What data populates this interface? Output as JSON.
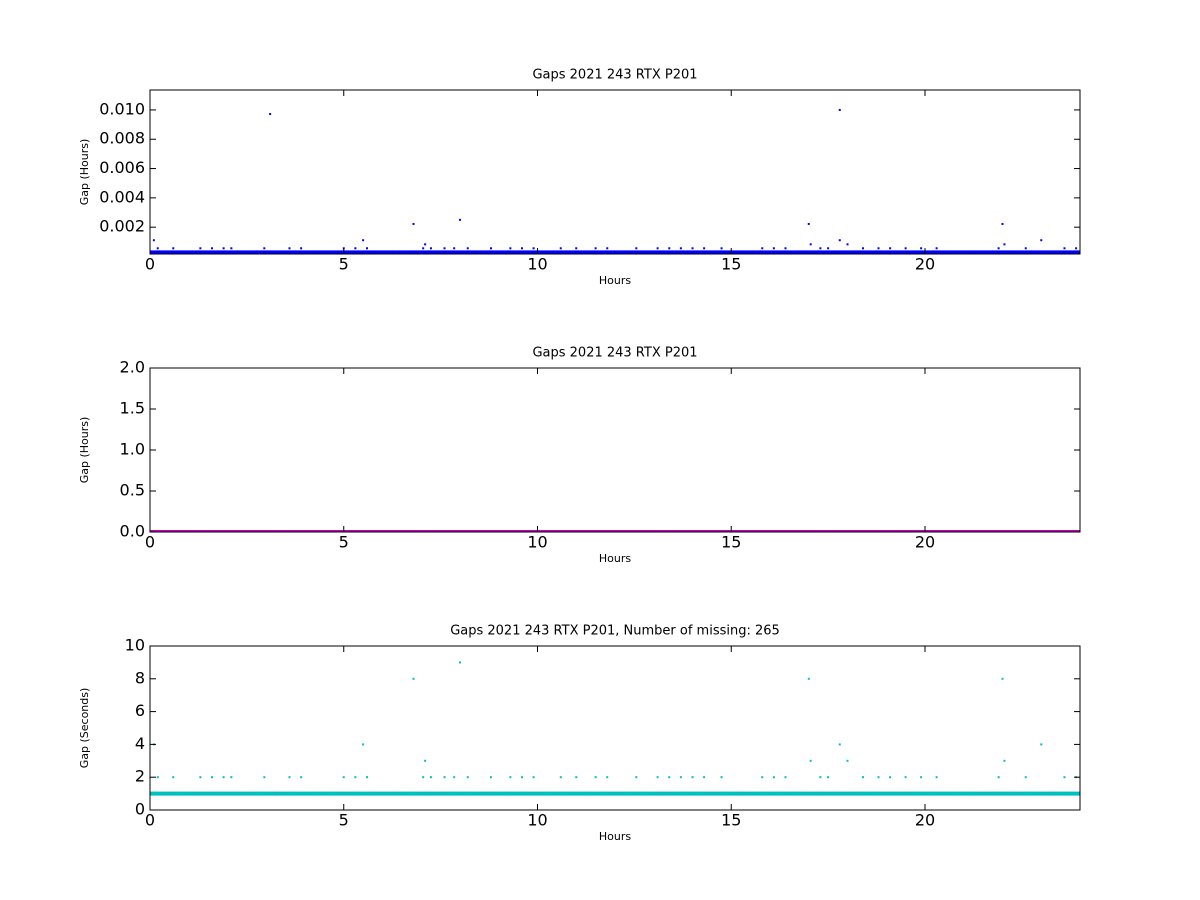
{
  "chart_data": [
    {
      "type": "scatter",
      "title": "Gaps 2021 243 RTX  P201",
      "xlabel": "Hours",
      "ylabel": "Gap (Hours)",
      "xlim": [
        0,
        24
      ],
      "ylim": [
        0.00017,
        0.01136
      ],
      "xticks": [
        0,
        5,
        10,
        15,
        20
      ],
      "yticks": [
        0.002,
        0.004,
        0.006,
        0.008,
        {
          "value": 0.01,
          "label": "0.010"
        }
      ],
      "series": [
        {
          "color": "#0000ff",
          "x": [
            0,
            0.5,
            1,
            1.5,
            2,
            2.5,
            3,
            3.5,
            4,
            4.5,
            5,
            5.5,
            6,
            6.5,
            7,
            7.5,
            8,
            8.5,
            9,
            9.5,
            10,
            10.5,
            11,
            11.5,
            12,
            12.5,
            13,
            13.5,
            14,
            14.5,
            15,
            15.5,
            16,
            16.5,
            17,
            17.5,
            18,
            18.5,
            19,
            19.5,
            20,
            20.5,
            21,
            21.5,
            22,
            22.5,
            23,
            23.5,
            24
          ],
          "values": [
            0.00028,
            0.00028,
            0.00028,
            0.00028,
            0.00028,
            0.00028,
            0.00028,
            0.00028,
            0.00028,
            0.00028,
            0.00028,
            0.00028,
            0.00028,
            0.00028,
            0.00028,
            0.00028,
            0.00028,
            0.00028,
            0.00028,
            0.00028,
            0.00028,
            0.00028,
            0.00028,
            0.00028,
            0.00028,
            0.00028,
            0.00028,
            0.00028,
            0.00028,
            0.00028,
            0.00028,
            0.00028,
            0.00028,
            0.00028,
            0.00028,
            0.00028,
            0.00028,
            0.00028,
            0.00028,
            0.00028,
            0.00028,
            0.00028,
            0.00028,
            0.00028,
            0.00028,
            0.00028,
            0.00028,
            0.00028,
            0.00028
          ]
        },
        {
          "color": "#0000ff",
          "x": [
            0.2,
            0.6,
            1.3,
            1.6,
            1.9,
            2.1,
            2.95,
            3.6,
            3.9,
            5.0,
            5.3,
            5.6,
            7.05,
            7.25,
            7.6,
            7.85,
            8.2,
            8.8,
            9.3,
            9.6,
            9.9,
            10.6,
            11.0,
            11.5,
            11.8,
            12.55,
            13.1,
            13.4,
            13.7,
            14.0,
            14.3,
            14.75,
            15.8,
            16.1,
            16.4,
            17.3,
            17.5,
            18.4,
            18.8,
            19.1,
            19.5,
            19.9,
            20.3,
            21.9,
            22.6,
            23.6,
            23.9,
            7.1,
            17.05,
            18.0,
            22.05,
            0.1,
            5.5,
            17.8,
            23.0,
            6.8,
            17.0,
            22.0,
            8.0,
            3.1,
            17.8
          ],
          "values": [
            0.00056,
            0.00056,
            0.00056,
            0.00056,
            0.00056,
            0.00056,
            0.00056,
            0.00056,
            0.00056,
            0.00056,
            0.00056,
            0.00056,
            0.00056,
            0.00056,
            0.00056,
            0.00056,
            0.00056,
            0.00056,
            0.00056,
            0.00056,
            0.00056,
            0.00056,
            0.00056,
            0.00056,
            0.00056,
            0.00056,
            0.00056,
            0.00056,
            0.00056,
            0.00056,
            0.00056,
            0.00056,
            0.00056,
            0.00056,
            0.00056,
            0.00056,
            0.00056,
            0.00056,
            0.00056,
            0.00056,
            0.00056,
            0.00056,
            0.00056,
            0.00056,
            0.00056,
            0.00056,
            0.00056,
            0.00083,
            0.00083,
            0.00083,
            0.00083,
            0.00111,
            0.00111,
            0.00111,
            0.00111,
            0.00222,
            0.00222,
            0.00222,
            0.0025,
            0.00972,
            0.01
          ]
        }
      ]
    },
    {
      "type": "scatter",
      "title": "Gaps 2021 243 RTX  P201",
      "xlabel": "Hours",
      "ylabel": "Gap (Hours)",
      "xlim": [
        0,
        24
      ],
      "ylim": [
        0,
        2
      ],
      "xticks": [
        0,
        5,
        10,
        15,
        20
      ],
      "yticks": [
        {
          "value": 0,
          "label": "0.0"
        },
        0.5,
        {
          "value": 1,
          "label": "1.0"
        },
        1.5,
        {
          "value": 2,
          "label": "2.0"
        }
      ],
      "series": [
        {
          "color": "#bf00bf",
          "x": [
            0,
            0.5,
            1,
            1.5,
            2,
            2.5,
            3,
            3.5,
            4,
            4.5,
            5,
            5.5,
            6,
            6.5,
            7,
            7.5,
            8,
            8.5,
            9,
            9.5,
            10,
            10.5,
            11,
            11.5,
            12,
            12.5,
            13,
            13.5,
            14,
            14.5,
            15,
            15.5,
            16,
            16.5,
            17,
            17.5,
            18,
            18.5,
            19,
            19.5,
            20,
            20.5,
            21,
            21.5,
            22,
            22.5,
            23,
            23.5,
            24
          ],
          "values": [
            0,
            0,
            0,
            0,
            0,
            0,
            0,
            0,
            0,
            0,
            0,
            0,
            0,
            0,
            0,
            0,
            0,
            0,
            0,
            0,
            0,
            0,
            0,
            0,
            0,
            0,
            0,
            0,
            0,
            0,
            0,
            0,
            0,
            0,
            0,
            0,
            0,
            0,
            0,
            0,
            0,
            0,
            0,
            0,
            0,
            0,
            0,
            0,
            0
          ]
        }
      ]
    },
    {
      "type": "scatter",
      "title": "Gaps 2021 243 RTX  P201, Number of missing: 265",
      "xlabel": "Hours",
      "ylabel": "Gap (Seconds)",
      "xlim": [
        0,
        24
      ],
      "ylim": [
        0,
        10
      ],
      "xticks": [
        0,
        5,
        10,
        15,
        20
      ],
      "yticks": [
        0,
        2,
        4,
        6,
        8,
        10
      ],
      "series": [
        {
          "color": "#00bfbf",
          "x": [
            0,
            0.5,
            1,
            1.5,
            2,
            2.5,
            3,
            3.5,
            4,
            4.5,
            5,
            5.5,
            6,
            6.5,
            7,
            7.5,
            8,
            8.5,
            9,
            9.5,
            10,
            10.5,
            11,
            11.5,
            12,
            12.5,
            13,
            13.5,
            14,
            14.5,
            15,
            15.5,
            16,
            16.5,
            17,
            17.5,
            18,
            18.5,
            19,
            19.5,
            20,
            20.5,
            21,
            21.5,
            22,
            22.5,
            23,
            23.5,
            24
          ],
          "values": [
            1,
            1,
            1,
            1,
            1,
            1,
            1,
            1,
            1,
            1,
            1,
            1,
            1,
            1,
            1,
            1,
            1,
            1,
            1,
            1,
            1,
            1,
            1,
            1,
            1,
            1,
            1,
            1,
            1,
            1,
            1,
            1,
            1,
            1,
            1,
            1,
            1,
            1,
            1,
            1,
            1,
            1,
            1,
            1,
            1,
            1,
            1,
            1,
            1
          ]
        },
        {
          "color": "#00bfbf",
          "x": [
            0.2,
            0.6,
            1.3,
            1.6,
            1.9,
            2.1,
            2.95,
            3.6,
            3.9,
            5.0,
            5.3,
            5.6,
            7.05,
            7.25,
            7.6,
            7.85,
            8.2,
            8.8,
            9.3,
            9.6,
            9.9,
            10.6,
            11.0,
            11.5,
            11.8,
            12.55,
            13.1,
            13.4,
            13.7,
            14.0,
            14.3,
            14.75,
            15.8,
            16.1,
            16.4,
            17.3,
            17.5,
            18.4,
            18.8,
            19.1,
            19.5,
            19.9,
            20.3,
            21.9,
            22.6,
            23.6,
            23.9,
            7.1,
            17.05,
            18.0,
            22.05,
            0.1,
            5.5,
            17.8,
            23.0,
            6.8,
            17.0,
            22.0,
            8.0
          ],
          "values": [
            2,
            2,
            2,
            2,
            2,
            2,
            2,
            2,
            2,
            2,
            2,
            2,
            2,
            2,
            2,
            2,
            2,
            2,
            2,
            2,
            2,
            2,
            2,
            2,
            2,
            2,
            2,
            2,
            2,
            2,
            2,
            2,
            2,
            2,
            2,
            2,
            2,
            2,
            2,
            2,
            2,
            2,
            2,
            2,
            2,
            2,
            2,
            3,
            3,
            3,
            3,
            4,
            4,
            4,
            4,
            8,
            8,
            8,
            9
          ]
        }
      ]
    }
  ]
}
